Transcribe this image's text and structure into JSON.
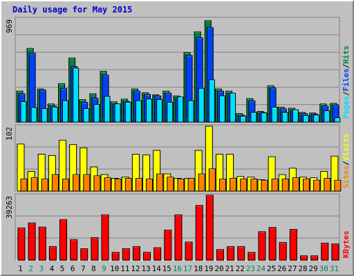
{
  "title": "Daily usage for May 2015",
  "colors": {
    "hits": "#008040",
    "files": "#0040ff",
    "pages": "#00e0ff",
    "visits": "#ffff00",
    "sites": "#ff8000",
    "kbytes": "#ff0000",
    "weekend_day": "#00805c",
    "weekday": "#000000",
    "background": "#c0c0c0"
  },
  "chart_data": [
    {
      "type": "bar",
      "panel": "top",
      "max_label": "969",
      "ylim": [
        0,
        969
      ],
      "categories": [
        "1",
        "2",
        "3",
        "4",
        "5",
        "6",
        "7",
        "8",
        "9",
        "10",
        "11",
        "12",
        "13",
        "14",
        "15",
        "16",
        "17",
        "18",
        "19",
        "20",
        "21",
        "22",
        "23",
        "24",
        "25",
        "26",
        "27",
        "28",
        "29",
        "30",
        "31"
      ],
      "series": [
        {
          "name": "Hits",
          "values": [
            290,
            690,
            310,
            170,
            360,
            600,
            210,
            265,
            475,
            190,
            215,
            310,
            275,
            255,
            290,
            245,
            650,
            845,
            950,
            310,
            290,
            80,
            220,
            100,
            340,
            140,
            130,
            90,
            85,
            170,
            175
          ]
        },
        {
          "name": "Files",
          "values": [
            265,
            645,
            300,
            150,
            315,
            520,
            185,
            225,
            440,
            170,
            195,
            290,
            260,
            245,
            270,
            230,
            625,
            790,
            885,
            290,
            270,
            65,
            200,
            90,
            320,
            125,
            115,
            80,
            75,
            150,
            160
          ]
        },
        {
          "name": "Pages",
          "values": [
            190,
            135,
            125,
            140,
            200,
            505,
            125,
            165,
            240,
            170,
            185,
            200,
            215,
            210,
            185,
            235,
            200,
            315,
            395,
            245,
            270,
            55,
            90,
            85,
            140,
            90,
            115,
            60,
            65,
            105,
            40
          ]
        }
      ],
      "axis_labels": [
        "Hits",
        "Files",
        "Pages"
      ]
    },
    {
      "type": "bar",
      "panel": "middle",
      "max_label": "102",
      "ylim": [
        0,
        102
      ],
      "categories": [
        "1",
        "2",
        "3",
        "4",
        "5",
        "6",
        "7",
        "8",
        "9",
        "10",
        "11",
        "12",
        "13",
        "14",
        "15",
        "16",
        "17",
        "18",
        "19",
        "20",
        "21",
        "22",
        "23",
        "24",
        "25",
        "26",
        "27",
        "28",
        "29",
        "30",
        "31"
      ],
      "series": [
        {
          "name": "Visits",
          "values": [
            74,
            31,
            58,
            56,
            80,
            73,
            68,
            38,
            26,
            20,
            22,
            58,
            57,
            64,
            27,
            20,
            20,
            64,
            102,
            58,
            58,
            23,
            22,
            18,
            54,
            26,
            36,
            22,
            21,
            31,
            55
          ]
        },
        {
          "name": "Sites",
          "values": [
            19,
            21,
            19,
            26,
            19,
            26,
            26,
            24,
            21,
            19,
            20,
            20,
            19,
            27,
            22,
            19,
            20,
            27,
            35,
            19,
            20,
            19,
            19,
            17,
            19,
            19,
            21,
            19,
            17,
            20,
            17
          ]
        }
      ],
      "axis_labels": [
        "Sites",
        "Visits"
      ]
    },
    {
      "type": "bar",
      "panel": "bottom",
      "max_label": "39263",
      "ylim": [
        0,
        39263
      ],
      "categories": [
        "1",
        "2",
        "3",
        "4",
        "5",
        "6",
        "7",
        "8",
        "9",
        "10",
        "11",
        "12",
        "13",
        "14",
        "15",
        "16",
        "17",
        "18",
        "19",
        "20",
        "21",
        "22",
        "23",
        "24",
        "25",
        "26",
        "27",
        "28",
        "29",
        "30",
        "31"
      ],
      "series": [
        {
          "name": "KBytes",
          "values": [
            19500,
            22500,
            20000,
            8200,
            24500,
            12400,
            6900,
            13600,
            27400,
            4700,
            6900,
            8200,
            4700,
            7500,
            18200,
            27400,
            10900,
            33100,
            39263,
            6400,
            8200,
            8200,
            4700,
            17200,
            19800,
            10700,
            18600,
            2600,
            2600,
            10300,
            9800
          ]
        }
      ],
      "axis_labels": [
        "KBytes"
      ]
    }
  ],
  "weekend_days": [
    2,
    3,
    9,
    16,
    17,
    23,
    24,
    30,
    31
  ],
  "separators": [
    "/",
    "/"
  ]
}
